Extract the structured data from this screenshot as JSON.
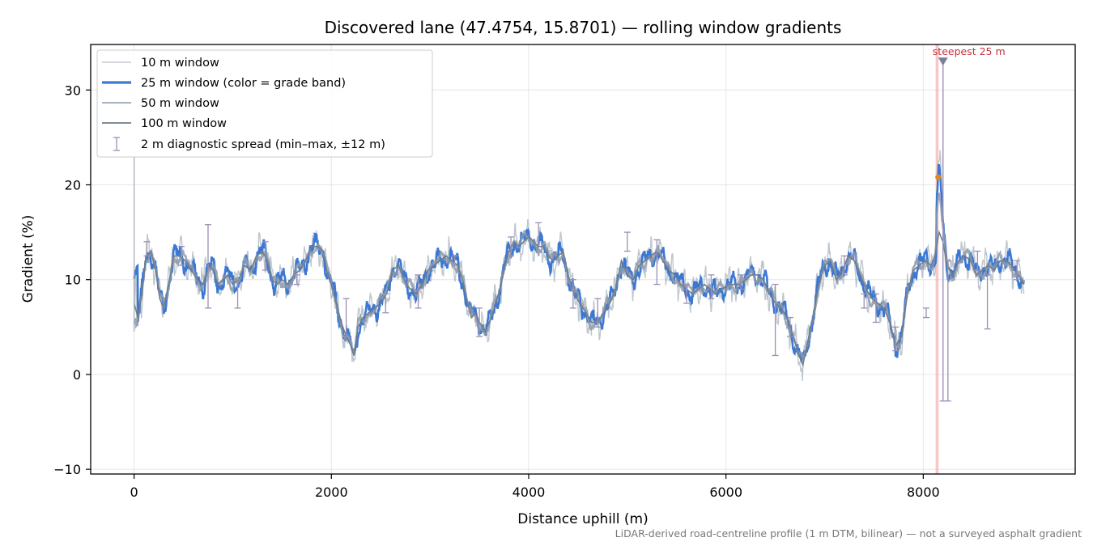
{
  "chart_data": {
    "type": "line",
    "title": "Discovered lane (47.4754, 15.8701) — rolling window gradients",
    "xlabel": "Distance uphill (m)",
    "ylabel": "Gradient (%)",
    "xlim": [
      -440,
      9540
    ],
    "ylim": [
      -10.5,
      34.8
    ],
    "xticks": [
      0,
      2000,
      4000,
      6000,
      8000
    ],
    "xtick_labels": [
      "0",
      "2000",
      "4000",
      "6000",
      "8000"
    ],
    "yticks": [
      -10,
      0,
      10,
      20,
      30
    ],
    "ytick_labels": [
      "−10",
      "0",
      "10",
      "20",
      "30"
    ],
    "grid": true,
    "legend_position": "top-left",
    "profile": {
      "x": [
        0,
        40,
        80,
        120,
        170,
        220,
        260,
        300,
        350,
        400,
        460,
        520,
        580,
        640,
        700,
        760,
        800,
        850,
        900,
        950,
        1000,
        1060,
        1120,
        1180,
        1240,
        1300,
        1350,
        1400,
        1450,
        1500,
        1560,
        1620,
        1680,
        1740,
        1800,
        1860,
        1920,
        1960,
        2000,
        2050,
        2100,
        2150,
        2200,
        2230,
        2270,
        2320,
        2380,
        2440,
        2500,
        2560,
        2620,
        2680,
        2720,
        2760,
        2800,
        2860,
        2920,
        2980,
        3040,
        3100,
        3160,
        3220,
        3280,
        3340,
        3380,
        3420,
        3460,
        3500,
        3560,
        3620,
        3680,
        3720,
        3760,
        3800,
        3850,
        3900,
        3950,
        4000,
        4050,
        4100,
        4150,
        4200,
        4250,
        4300,
        4350,
        4400,
        4460,
        4520,
        4580,
        4640,
        4700,
        4760,
        4820,
        4880,
        4940,
        5000,
        5060,
        5120,
        5180,
        5240,
        5300,
        5360,
        5420,
        5480,
        5540,
        5600,
        5660,
        5720,
        5780,
        5840,
        5900,
        5960,
        6020,
        6080,
        6140,
        6200,
        6260,
        6320,
        6380,
        6440,
        6500,
        6560,
        6620,
        6680,
        6740,
        6780,
        6820,
        6880,
        6940,
        7000,
        7060,
        7120,
        7180,
        7240,
        7300,
        7360,
        7420,
        7480,
        7540,
        7600,
        7660,
        7720,
        7780,
        7840,
        7900,
        7960,
        8020,
        8080,
        8120,
        8160,
        8200,
        8240,
        8300,
        8360,
        8420,
        8480,
        8540,
        8600,
        8660,
        8720,
        8780,
        8840,
        8900,
        8960,
        9020,
        9080
      ],
      "g100": [
        7.5,
        6.0,
        8.5,
        12.5,
        13.0,
        11.0,
        8.0,
        7.0,
        9.5,
        12.5,
        12.5,
        12.0,
        11.0,
        10.0,
        9.5,
        11.5,
        11.0,
        9.5,
        10.0,
        10.5,
        9.5,
        10.0,
        11.5,
        11.0,
        12.5,
        13.0,
        12.0,
        10.0,
        9.5,
        10.0,
        9.5,
        10.5,
        11.0,
        12.0,
        13.5,
        13.5,
        13.0,
        10.5,
        9.5,
        7.5,
        5.5,
        4.0,
        3.0,
        2.0,
        5.0,
        6.0,
        6.5,
        7.0,
        7.5,
        8.5,
        11.0,
        11.5,
        10.5,
        9.5,
        9.0,
        8.5,
        9.5,
        11.0,
        11.5,
        12.0,
        12.5,
        12.0,
        11.5,
        9.5,
        7.5,
        6.0,
        6.5,
        5.5,
        4.5,
        6.0,
        8.0,
        9.5,
        11.5,
        13.0,
        14.0,
        13.5,
        14.0,
        14.5,
        14.0,
        13.5,
        13.5,
        12.5,
        12.0,
        12.5,
        13.0,
        10.5,
        8.5,
        7.5,
        6.5,
        5.5,
        5.5,
        6.5,
        7.5,
        9.0,
        12.0,
        10.5,
        10.0,
        11.5,
        12.0,
        12.5,
        13.0,
        12.0,
        11.0,
        10.5,
        9.5,
        9.0,
        8.5,
        9.0,
        9.5,
        9.0,
        8.5,
        9.0,
        9.5,
        9.5,
        9.5,
        10.0,
        10.5,
        10.5,
        10.0,
        8.5,
        7.5,
        7.0,
        6.0,
        4.0,
        2.0,
        1.0,
        3.0,
        6.0,
        9.5,
        11.5,
        12.0,
        10.0,
        11.0,
        12.5,
        12.0,
        10.5,
        9.0,
        8.0,
        7.5,
        7.0,
        5.5,
        3.0,
        4.0,
        8.5,
        11.0,
        11.5,
        12.0,
        11.5,
        12.5,
        15.0,
        14.0,
        11.5,
        10.5,
        12.0,
        12.5,
        12.0,
        10.5,
        11.0,
        11.5,
        11.0,
        12.0,
        12.0,
        11.5,
        10.5,
        9.5
      ],
      "g25_steepest": {
        "x": 8200,
        "y": 33.0,
        "label": "steepest 25 m"
      },
      "g25_max_band": {
        "x": 8150,
        "y": 20.8
      },
      "highlight_band": [
        8125,
        8155
      ],
      "start_spike": {
        "x": 0,
        "y_min": 4.5,
        "y_max": 23.0
      },
      "steepest_vline": {
        "x": 8200,
        "y_min": -2.8,
        "y_max": 33.0
      }
    },
    "series": [
      {
        "name": "10 m window"
      },
      {
        "name": "25 m window (color = grade band)"
      },
      {
        "name": "50 m window"
      },
      {
        "name": "100 m window"
      },
      {
        "name": "2 m diagnostic spread (min–max, ±12 m)"
      }
    ],
    "errorbars": {
      "x": [
        130,
        480,
        750,
        1050,
        1330,
        1650,
        2150,
        2550,
        2880,
        3250,
        3500,
        3820,
        4100,
        4450,
        4700,
        5000,
        5300,
        5600,
        5850,
        6150,
        6500,
        6650,
        7200,
        7400,
        7520,
        7720,
        8030,
        8250,
        8550,
        8650,
        8950
      ],
      "min": [
        12.5,
        11.5,
        7.0,
        7.0,
        11.0,
        9.5,
        4.0,
        6.5,
        7.0,
        11.5,
        4.0,
        12.5,
        13.0,
        7.0,
        5.0,
        13.0,
        9.5,
        7.5,
        8.0,
        9.0,
        2.0,
        4.0,
        10.5,
        7.0,
        5.5,
        2.5,
        6.0,
        -2.8,
        11.0,
        4.8,
        10.0
      ],
      "max": [
        14.0,
        13.5,
        15.8,
        10.0,
        14.0,
        10.5,
        8.0,
        8.5,
        10.5,
        12.5,
        7.0,
        14.5,
        16.0,
        10.0,
        8.0,
        15.0,
        14.2,
        9.5,
        10.5,
        10.5,
        9.5,
        6.0,
        12.5,
        8.5,
        8.5,
        5.0,
        7.0,
        12.0,
        13.0,
        10.5,
        12.0
      ]
    },
    "footnote": "LiDAR-derived road-centreline profile (1 m DTM, bilinear) — not a surveyed asphalt gradient"
  },
  "colors": {
    "g10": "#aab4be",
    "g25": "#3a78d4",
    "g25_orange": "#e08a10",
    "g50": "#8d9aab",
    "g100": "#6f7c8c",
    "errorbar": "#9c8fb4",
    "highlight": "#f5b4b4",
    "annotation": "#c8323c"
  }
}
